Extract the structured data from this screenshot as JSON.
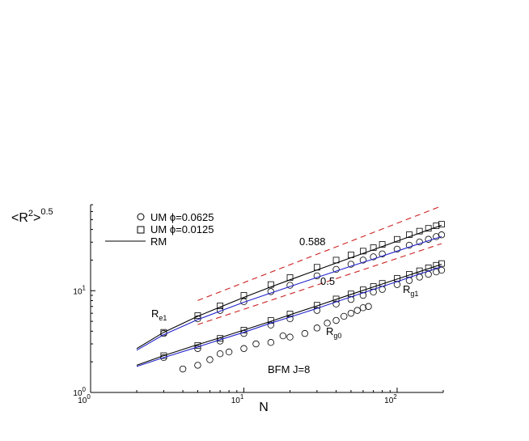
{
  "chart_data": {
    "type": "scatter",
    "x_scale": "log",
    "y_scale": "log",
    "xlim": [
      1,
      200
    ],
    "ylim": [
      1,
      70
    ],
    "xlabel": "N",
    "ylabel": "<R²>^0.5",
    "x_ticks": [
      {
        "value": 1,
        "base": "10",
        "exp": "0"
      },
      {
        "value": 10,
        "base": "10",
        "exp": "1"
      },
      {
        "value": 100,
        "base": "10",
        "exp": "2"
      }
    ],
    "y_ticks": [
      {
        "value": 1,
        "base": "10",
        "exp": "0"
      },
      {
        "value": 10,
        "base": "10",
        "exp": "1"
      }
    ],
    "grid": false,
    "legend_position": "top-left",
    "legend": [
      {
        "marker": "circle",
        "text": "UM ϕ=0.0625"
      },
      {
        "marker": "square",
        "text": "UM ϕ=0.0125"
      },
      {
        "marker": "line",
        "text": "RM"
      }
    ],
    "annotations": {
      "slope_upper": "0.588",
      "slope_lower": "0.5",
      "re1": {
        "main": "R",
        "sub": "e1"
      },
      "rg1": {
        "main": "R",
        "sub": "g1"
      },
      "rg0": {
        "main": "R",
        "sub": "g0"
      },
      "model": "BFM J=8"
    },
    "series": [
      {
        "name": "UM ϕ=0.0625 R_e1",
        "marker": "circle",
        "color": "#000000",
        "x": [
          3,
          5,
          7,
          10,
          15,
          20,
          30,
          40,
          50,
          60,
          70,
          80,
          100,
          120,
          140,
          160,
          180,
          195
        ],
        "y": [
          3.8,
          5.3,
          6.4,
          7.8,
          9.8,
          11.3,
          14.0,
          16.2,
          18.2,
          20.0,
          21.5,
          23.0,
          25.6,
          28.0,
          30.1,
          32.0,
          34.0,
          35.4
        ]
      },
      {
        "name": "UM ϕ=0.0125 R_e1",
        "marker": "square",
        "color": "#000000",
        "x": [
          3,
          5,
          7,
          10,
          15,
          20,
          30,
          40,
          50,
          60,
          70,
          80,
          100,
          120,
          140,
          160,
          180,
          195
        ],
        "y": [
          3.9,
          5.7,
          7.1,
          9.0,
          11.5,
          13.5,
          17.0,
          20.0,
          22.5,
          24.5,
          26.5,
          28.5,
          32.0,
          35.5,
          38.5,
          41.0,
          43.5,
          45.0
        ]
      },
      {
        "name": "UM ϕ=0.0625 R_g1",
        "marker": "circle",
        "color": "#000000",
        "x": [
          3,
          5,
          7,
          10,
          15,
          20,
          30,
          40,
          50,
          60,
          70,
          80,
          100,
          120,
          140,
          160,
          180,
          195
        ],
        "y": [
          2.2,
          2.7,
          3.2,
          3.8,
          4.6,
          5.3,
          6.4,
          7.4,
          8.2,
          9.0,
          9.7,
          10.3,
          11.5,
          12.6,
          13.6,
          14.5,
          15.3,
          15.9
        ]
      },
      {
        "name": "UM ϕ=0.0125 R_g1",
        "marker": "square",
        "color": "#000000",
        "x": [
          3,
          5,
          7,
          10,
          15,
          20,
          30,
          40,
          50,
          60,
          70,
          80,
          100,
          120,
          140,
          160,
          180,
          195
        ],
        "y": [
          2.3,
          2.9,
          3.4,
          4.1,
          5.1,
          5.9,
          7.2,
          8.3,
          9.3,
          10.2,
          11.0,
          11.8,
          13.2,
          14.5,
          15.7,
          16.8,
          17.8,
          18.5
        ]
      },
      {
        "name": "UM ϕ=0.0625 R_g0",
        "marker": "circle",
        "color": "#000000",
        "x": [
          4,
          5,
          6,
          7,
          8,
          10,
          12,
          15,
          18,
          20,
          25,
          30,
          35,
          40,
          45,
          50,
          55,
          60,
          65
        ],
        "y": [
          1.7,
          1.85,
          2.1,
          2.4,
          2.5,
          2.7,
          3.0,
          3.1,
          3.6,
          3.5,
          3.8,
          4.3,
          4.8,
          5.1,
          5.6,
          6.0,
          6.4,
          6.8,
          7.0
        ]
      },
      {
        "name": "RM R_e1",
        "type": "line",
        "color": "#000000",
        "x": [
          2,
          3,
          5,
          7,
          10,
          15,
          20,
          30,
          50,
          70,
          100,
          140,
          195
        ],
        "y": [
          2.7,
          3.9,
          5.6,
          6.9,
          8.6,
          10.9,
          12.8,
          16.0,
          21.1,
          25.3,
          30.7,
          36.8,
          44.0
        ]
      },
      {
        "name": "RM R_g1",
        "type": "line",
        "color": "#000000",
        "x": [
          2,
          3,
          5,
          7,
          10,
          15,
          20,
          30,
          50,
          70,
          100,
          140,
          195
        ],
        "y": [
          1.85,
          2.3,
          2.95,
          3.45,
          4.1,
          5.0,
          5.8,
          7.1,
          9.2,
          10.9,
          13.0,
          15.4,
          18.2
        ]
      },
      {
        "name": "RM R_e1 blue",
        "type": "line",
        "color": "#2222cc",
        "x": [
          2,
          3,
          5,
          7,
          10,
          15,
          20,
          30,
          50,
          70,
          100,
          140,
          195
        ],
        "y": [
          2.6,
          3.7,
          5.2,
          6.3,
          7.7,
          9.5,
          11.0,
          13.5,
          17.4,
          20.5,
          24.5,
          29.0,
          34.0
        ]
      },
      {
        "name": "RM R_g1 blue",
        "type": "line",
        "color": "#2222cc",
        "x": [
          2,
          3,
          5,
          7,
          10,
          15,
          20,
          30,
          50,
          70,
          100,
          140,
          195
        ],
        "y": [
          1.8,
          2.2,
          2.8,
          3.3,
          3.9,
          4.8,
          5.5,
          6.7,
          8.7,
          10.3,
          12.3,
          14.6,
          17.2
        ]
      },
      {
        "name": "0.588 reference",
        "type": "line",
        "style": "dashed",
        "color": "#cc2222",
        "x": [
          5,
          195
        ],
        "y": [
          8.0,
          68.0
        ]
      },
      {
        "name": "0.5 reference",
        "type": "line",
        "style": "dashed",
        "color": "#cc2222",
        "x": [
          5,
          195
        ],
        "y": [
          4.65,
          29.0
        ]
      }
    ]
  }
}
